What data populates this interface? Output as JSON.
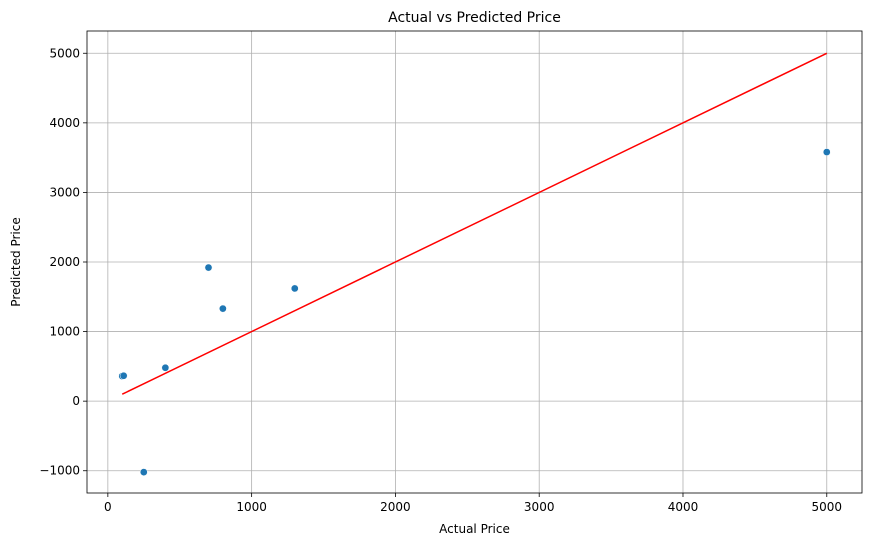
{
  "chart_data": {
    "type": "scatter",
    "title": "Actual vs Predicted Price",
    "xlabel": "Actual Price",
    "ylabel": "Predicted Price",
    "xlim": [
      -145,
      5245
    ],
    "ylim": [
      -1320,
      5320
    ],
    "xticks": [
      0,
      1000,
      2000,
      3000,
      4000,
      5000
    ],
    "yticks": [
      -1000,
      0,
      1000,
      2000,
      3000,
      4000,
      5000
    ],
    "grid": true,
    "points": [
      {
        "x": 100,
        "y": 360
      },
      {
        "x": 110,
        "y": 365
      },
      {
        "x": 250,
        "y": -1020
      },
      {
        "x": 400,
        "y": 480
      },
      {
        "x": 700,
        "y": 1920
      },
      {
        "x": 800,
        "y": 1330
      },
      {
        "x": 1300,
        "y": 1620
      },
      {
        "x": 5000,
        "y": 3580
      }
    ],
    "reference_line": {
      "x": [
        100,
        5000
      ],
      "y": [
        100,
        5000
      ]
    },
    "colors": {
      "points": "#1f77b4",
      "line": "#ff0000"
    }
  }
}
